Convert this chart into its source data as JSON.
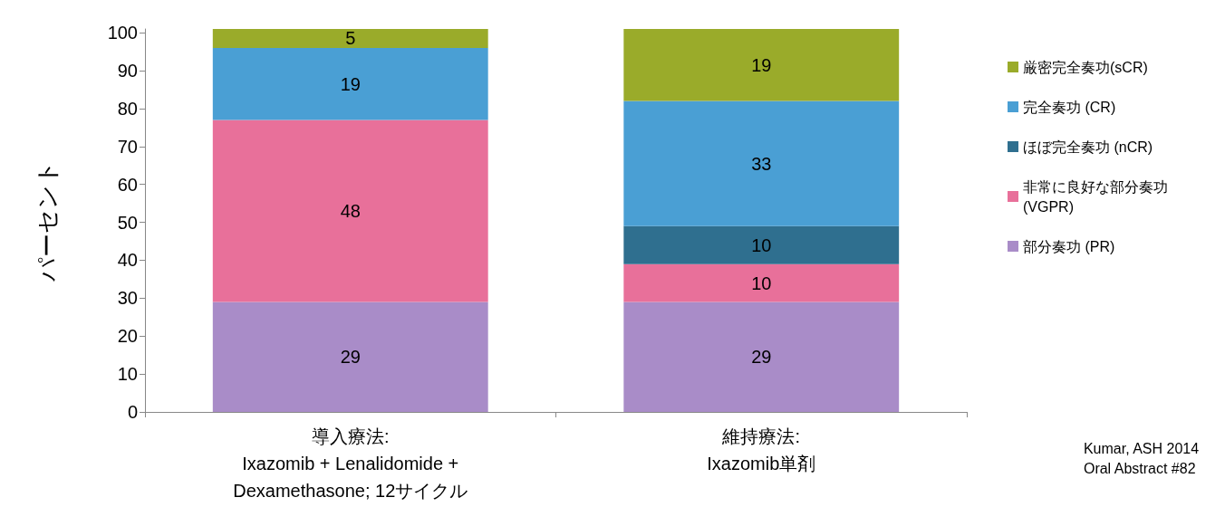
{
  "chart_data": {
    "type": "bar",
    "stacked": true,
    "ylabel": "パーセント",
    "categories": [
      "導入療法:\nIxazomib + Lenalidomide +\nDexamethasone; 12サイクル",
      "維持療法:\nIxazomib単剤"
    ],
    "series": [
      {
        "name": "部分奏功 (PR)",
        "color": "#a98cc8",
        "values": [
          29,
          29
        ],
        "value_labels": [
          "29",
          "29"
        ]
      },
      {
        "name": "非常に良好な部分奏功 (VGPR)",
        "color": "#e8709a",
        "values": [
          48,
          10
        ],
        "value_labels": [
          "48",
          "10"
        ]
      },
      {
        "name": "ほぼ完全奏功 (nCR)",
        "color": "#2f6f8f",
        "values": [
          null,
          10
        ],
        "value_labels": [
          null,
          "10"
        ]
      },
      {
        "name": "完全奏功 (CR)",
        "color": "#4a9fd4",
        "values": [
          19,
          33
        ],
        "value_labels": [
          "19",
          "33"
        ]
      },
      {
        "name": "厳密完全奏功(sCR)",
        "color": "#9aab2a",
        "values": [
          5,
          19
        ],
        "value_labels": [
          "5",
          "19"
        ]
      }
    ],
    "ylim": [
      0,
      101
    ],
    "yticks": [
      0,
      10,
      20,
      30,
      40,
      50,
      60,
      70,
      80,
      90,
      100
    ],
    "grid": false,
    "legend": "right",
    "annotations": [
      "Kumar, ASH 2014\nOral Abstract #82"
    ]
  }
}
